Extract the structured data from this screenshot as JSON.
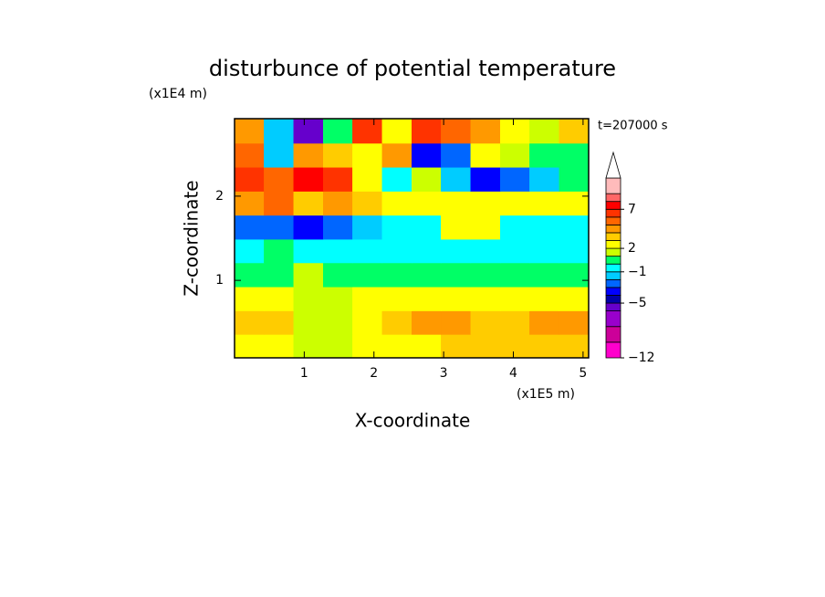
{
  "chart_data": {
    "type": "contour",
    "title": "disturbunce of potential temperature",
    "time_label": "t=207000 s",
    "x_label": "X-coordinate",
    "x_unit": "(x1E5 m)",
    "y_label": "Z-coordinate",
    "y_unit": "(x1E4 m)",
    "xlim": [
      0,
      5.08
    ],
    "ylim": [
      0.08,
      2.92
    ],
    "xticks": [
      1,
      2,
      3,
      4,
      5
    ],
    "yticks": [
      1,
      2
    ],
    "x": [
      0.21,
      0.63,
      1.06,
      1.48,
      1.9,
      2.33,
      2.75,
      3.17,
      3.6,
      4.02,
      4.44,
      4.87
    ],
    "y": [
      0.22,
      0.5,
      0.78,
      1.07,
      1.35,
      1.63,
      1.92,
      2.2,
      2.49,
      2.77
    ],
    "z": [
      [
        2,
        2,
        1,
        1,
        2,
        2,
        2,
        3,
        3,
        3,
        3,
        3
      ],
      [
        3,
        3,
        1,
        1,
        2,
        3,
        4,
        4,
        3,
        3,
        4,
        4
      ],
      [
        2,
        2,
        1,
        1,
        2,
        2,
        2,
        2,
        2,
        2,
        2,
        2
      ],
      [
        0,
        0,
        1,
        0,
        0,
        0,
        0,
        0,
        0,
        0,
        0,
        0
      ],
      [
        -1,
        0,
        -1,
        -1,
        -1,
        -1,
        -1,
        -1,
        -1,
        -1,
        -1,
        -1
      ],
      [
        -3,
        -3,
        -4,
        -3,
        -2,
        -1,
        -1,
        2,
        2,
        -1,
        -1,
        -1
      ],
      [
        4,
        5,
        3,
        4,
        3,
        2,
        2,
        2,
        2,
        2,
        2,
        2
      ],
      [
        6,
        5,
        7,
        6,
        2,
        -1,
        1,
        -2,
        -4,
        -3,
        -2,
        0
      ],
      [
        5,
        -2,
        4,
        3,
        2,
        4,
        -4,
        -3,
        2,
        1,
        0,
        0
      ],
      [
        4,
        -2,
        -6,
        0,
        6,
        2,
        6,
        5,
        4,
        2,
        1,
        3
      ]
    ],
    "colorbar": {
      "zlim": [
        -12,
        11
      ],
      "levels": [
        -12,
        -10,
        -8,
        -6,
        -5,
        -4,
        -3,
        -2,
        -1,
        0,
        1,
        2,
        3,
        4,
        5,
        6,
        7,
        8,
        9,
        11
      ],
      "colors": [
        "#ff00cc",
        "#cc0099",
        "#9900cc",
        "#6600cc",
        "#0000aa",
        "#0000ff",
        "#0066ff",
        "#00ccff",
        "#00ffff",
        "#00ff66",
        "#ccff00",
        "#ffff00",
        "#ffcc00",
        "#ff9900",
        "#ff6600",
        "#ff3300",
        "#ff0000",
        "#ff6666",
        "#ffbbbb"
      ],
      "ticks": [
        {
          "value": -12,
          "label": "−12"
        },
        {
          "value": -5,
          "label": "−5"
        },
        {
          "value": -1,
          "label": "−1"
        },
        2,
        7
      ]
    }
  }
}
